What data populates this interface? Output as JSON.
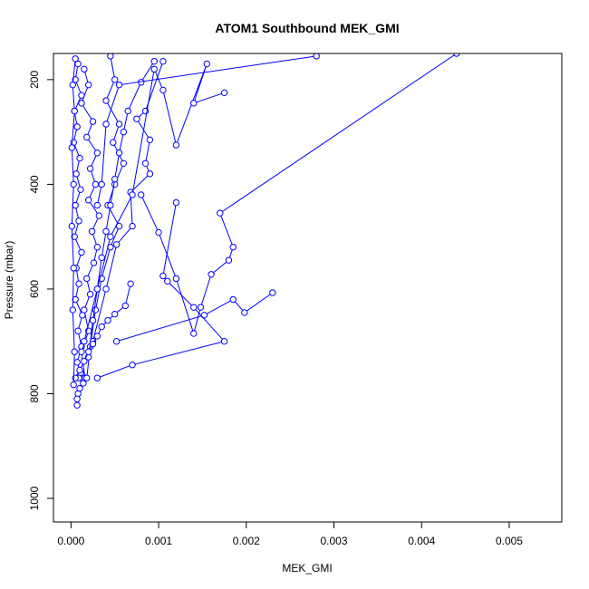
{
  "chart_data": {
    "type": "line",
    "title": "ATOM1 Southbound MEK_GMI",
    "xlabel": "MEK_GMI",
    "ylabel": "Pressure (mbar)",
    "xlim": [
      -0.0002,
      0.0056
    ],
    "ylim": [
      1045,
      150
    ],
    "y_reversed": true,
    "x_ticks": [
      0.0,
      0.001,
      0.002,
      0.003,
      0.004,
      0.005
    ],
    "x_tick_labels": [
      "0.000",
      "0.001",
      "0.002",
      "0.003",
      "0.004",
      "0.005"
    ],
    "y_ticks": [
      200,
      400,
      600,
      800,
      1000
    ],
    "y_tick_labels": [
      "200",
      "400",
      "600",
      "800",
      "1000"
    ],
    "grid": false,
    "marker": "open-circle",
    "series_color": "#0000ff",
    "series": [
      {
        "x": [
          8e-05,
          5e-05,
          0.00012,
          4e-05,
          7e-05,
          3e-05,
          0.0001,
          6e-05,
          0.00011,
          5e-05,
          9e-05,
          4e-05,
          0.00012,
          6e-05,
          9e-05,
          5e-05,
          0.00013,
          8e-05,
          0.00012,
          7e-05,
          0.00011,
          9e-05,
          0.00014,
          0.0001,
          8e-05,
          7e-05,
          7e-05
        ],
        "y": [
          170,
          200,
          230,
          260,
          290,
          320,
          350,
          380,
          410,
          440,
          470,
          500,
          530,
          560,
          590,
          620,
          650,
          680,
          710,
          740,
          760,
          770,
          780,
          790,
          800,
          810,
          822
        ]
      },
      {
        "x": [
          0.00015,
          0.0002,
          0.00012,
          0.00025,
          0.00018,
          0.0003,
          0.00022,
          0.00028,
          0.0002,
          0.00032,
          0.00024,
          0.0003,
          0.00026,
          0.00018,
          0.00022,
          0.00015,
          0.0002,
          0.00012,
          0.00016
        ],
        "y": [
          180,
          210,
          245,
          280,
          310,
          340,
          370,
          400,
          430,
          460,
          490,
          520,
          550,
          580,
          610,
          640,
          680,
          720,
          770
        ]
      },
      {
        "x": [
          0.00045,
          0.0005,
          0.0004,
          0.00055,
          0.00048,
          0.0006,
          0.0005,
          0.00042,
          0.00055,
          0.00045,
          0.00035,
          0.00028,
          0.00022,
          0.00018
        ],
        "y": [
          155,
          200,
          240,
          285,
          320,
          360,
          400,
          440,
          480,
          520,
          580,
          640,
          710,
          770
        ]
      },
      {
        "x": [
          0.00095,
          0.0008,
          0.00065,
          0.0006,
          0.00055,
          0.0005,
          0.00045,
          0.0004,
          0.00035,
          0.0003,
          0.00025,
          0.0002
        ],
        "y": [
          165,
          205,
          260,
          300,
          340,
          390,
          440,
          490,
          540,
          600,
          660,
          730
        ]
      },
      {
        "x": [
          0.00105,
          0.00085,
          0.00075,
          0.0009,
          0.00085,
          0.0009,
          0.00068,
          0.0007,
          0.00052,
          0.0004,
          0.00025
        ],
        "y": [
          165,
          260,
          275,
          315,
          360,
          380,
          415,
          480,
          515,
          600,
          700
        ]
      },
      {
        "x": [
          0.00175,
          0.0014,
          0.00155,
          0.0012,
          0.00105,
          0.00095,
          0.0007,
          0.00045,
          0.0003,
          0.00015
        ],
        "y": [
          225,
          245,
          170,
          325,
          220,
          180,
          420,
          500,
          600,
          700
        ]
      },
      {
        "x": [
          0.0028,
          0.00055,
          0.0004,
          0.00035,
          0.0003
        ],
        "y": [
          155,
          210,
          285,
          400,
          440
        ]
      },
      {
        "x": [
          0.0044,
          0.0017,
          0.00185,
          0.0018,
          0.0016,
          0.00148,
          0.0014,
          0.0012,
          0.001,
          0.0008
        ],
        "y": [
          150,
          455,
          520,
          545,
          572,
          635,
          685,
          580,
          492,
          420
        ]
      },
      {
        "x": [
          0.0023,
          0.00198,
          0.00185,
          0.00152,
          0.00052
        ],
        "y": [
          607,
          645,
          620,
          650,
          700
        ]
      },
      {
        "x": [
          0.0012,
          0.00105,
          0.0011,
          0.0014,
          0.00175,
          0.0007,
          0.0003
        ],
        "y": [
          435,
          575,
          585,
          635,
          700,
          745,
          770
        ]
      },
      {
        "x": [
          0.00068,
          0.00062,
          0.0005,
          0.00042,
          0.00035,
          0.0003,
          0.00025,
          0.0002,
          0.00015,
          0.0001,
          5e-05
        ],
        "y": [
          590,
          632,
          648,
          660,
          672,
          690,
          705,
          720,
          738,
          755,
          770
        ]
      },
      {
        "x": [
          5e-05,
          2e-05,
          4e-05,
          1e-05,
          3e-05,
          1e-05,
          3e-05,
          2e-05,
          4e-05,
          3e-05
        ],
        "y": [
          160,
          210,
          260,
          330,
          400,
          480,
          560,
          640,
          720,
          783
        ]
      }
    ]
  }
}
